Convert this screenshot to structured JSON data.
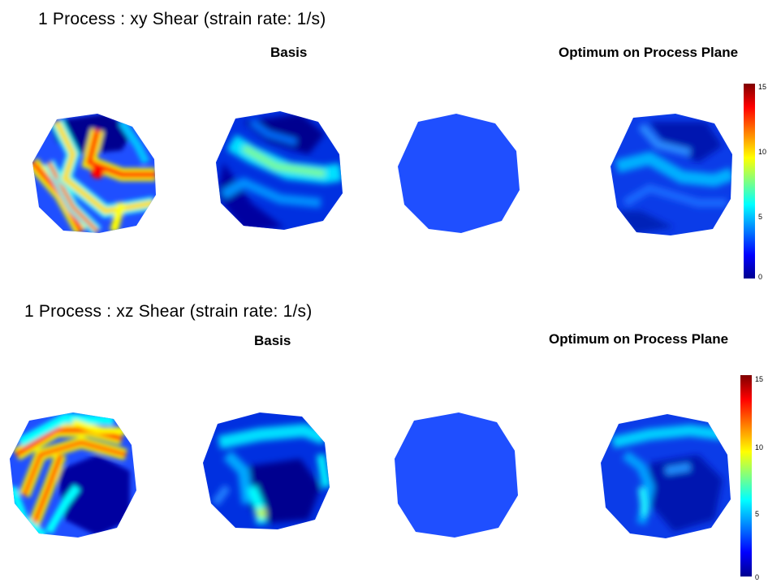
{
  "sections": [
    {
      "title": "1 Process : xy Shear (strain rate: 1/s)",
      "basis_label": "Basis",
      "optimum_label": "Optimum on Process Plane",
      "colorbar_ticks": [
        "15",
        "10",
        "5",
        "0"
      ]
    },
    {
      "title": "1 Process : xz Shear (strain rate: 1/s)",
      "basis_label": "Basis",
      "optimum_label": "Optimum on Process Plane",
      "colorbar_ticks": [
        "15",
        "10",
        "5",
        "0"
      ]
    }
  ],
  "colormap": [
    "#00008f",
    "#0000ff",
    "#0080ff",
    "#00ffff",
    "#80ff80",
    "#ffff00",
    "#ff8000",
    "#ff0000",
    "#7f0000"
  ]
}
